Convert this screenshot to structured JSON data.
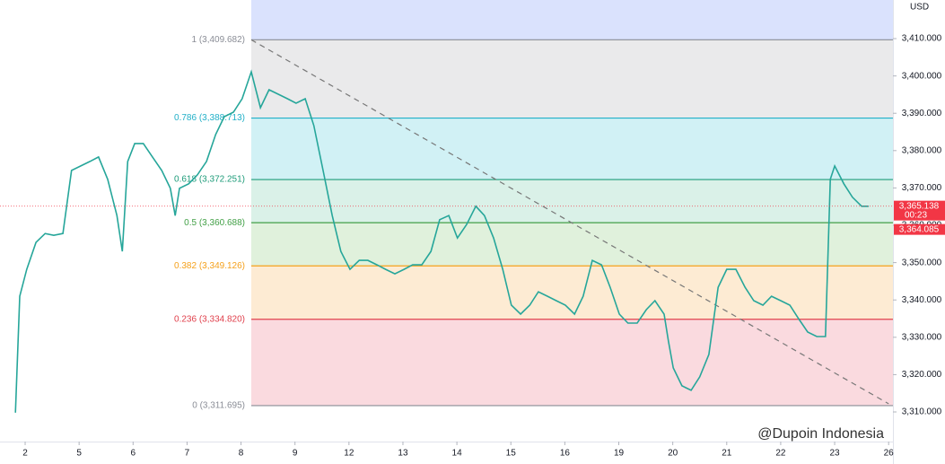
{
  "chart_data": {
    "type": "line",
    "currency": "USD",
    "watermark": "@Dupoin Indonesia",
    "xlim": [
      -0.466,
      16.08
    ],
    "xticks": [
      {
        "value": 0,
        "label": "2"
      },
      {
        "value": 1,
        "label": "5"
      },
      {
        "value": 2,
        "label": "6"
      },
      {
        "value": 3,
        "label": "7"
      },
      {
        "value": 4,
        "label": "8"
      },
      {
        "value": 5,
        "label": "9"
      },
      {
        "value": 6,
        "label": "12"
      },
      {
        "value": 7,
        "label": "13"
      },
      {
        "value": 8,
        "label": "14"
      },
      {
        "value": 9,
        "label": "15"
      },
      {
        "value": 10,
        "label": "16"
      },
      {
        "value": 11,
        "label": "19"
      },
      {
        "value": 12,
        "label": "20"
      },
      {
        "value": 13,
        "label": "21"
      },
      {
        "value": 14,
        "label": "22"
      },
      {
        "value": 15,
        "label": "23"
      },
      {
        "value": 16,
        "label": "26"
      }
    ],
    "ylim": [
      3302.07,
      3420.34
    ],
    "yticks": [
      {
        "value": 3310,
        "label": "3,310.000"
      },
      {
        "value": 3320,
        "label": "3,320.000"
      },
      {
        "value": 3330,
        "label": "3,330.000"
      },
      {
        "value": 3340,
        "label": "3,340.000"
      },
      {
        "value": 3350,
        "label": "3,350.000"
      },
      {
        "value": 3360,
        "label": "3,360.000"
      },
      {
        "value": 3370,
        "label": "3,370.000"
      },
      {
        "value": 3380,
        "label": "3,380.000"
      },
      {
        "value": 3390,
        "label": "3,390.000"
      },
      {
        "value": 3400,
        "label": "3,400.000"
      },
      {
        "value": 3410,
        "label": "3,410.000"
      }
    ],
    "x": [
      -0.18,
      -0.1,
      0.03,
      0.2,
      0.37,
      0.53,
      0.7,
      0.86,
      1.03,
      1.2,
      1.36,
      1.53,
      1.7,
      1.8,
      1.9,
      2.03,
      2.19,
      2.36,
      2.53,
      2.69,
      2.78,
      2.86,
      3.03,
      3.19,
      3.36,
      3.53,
      3.69,
      3.86,
      4.02,
      4.19,
      4.36,
      4.52,
      4.69,
      4.86,
      5.02,
      5.19,
      5.35,
      5.52,
      5.69,
      5.85,
      6.02,
      6.19,
      6.35,
      6.52,
      6.68,
      6.85,
      7.02,
      7.18,
      7.35,
      7.52,
      7.68,
      7.85,
      8.01,
      8.18,
      8.35,
      8.51,
      8.68,
      8.85,
      9.01,
      9.18,
      9.35,
      9.51,
      9.68,
      9.84,
      10.01,
      10.18,
      10.34,
      10.51,
      10.68,
      10.84,
      11.01,
      11.17,
      11.34,
      11.51,
      11.67,
      11.84,
      11.92,
      12.01,
      12.17,
      12.34,
      12.5,
      12.67,
      12.84,
      13.0,
      13.17,
      13.34,
      13.5,
      13.67,
      13.83,
      14.0,
      14.17,
      14.33,
      14.5,
      14.67,
      14.83,
      14.92,
      15.0,
      15.17,
      15.33,
      15.5,
      15.63
    ],
    "series": [
      {
        "color": "#26a69a",
        "values": [
          3309.8,
          3341.0,
          3348.2,
          3355.4,
          3357.8,
          3357.3,
          3357.8,
          3374.7,
          3375.9,
          3377.1,
          3378.3,
          3372.3,
          3362.6,
          3353.0,
          3377.1,
          3381.9,
          3381.9,
          3378.3,
          3374.7,
          3369.9,
          3362.6,
          3369.9,
          3371.1,
          3373.5,
          3377.1,
          3384.3,
          3389.1,
          3390.3,
          3393.9,
          3401.1,
          3391.5,
          3396.3,
          3395.1,
          3393.9,
          3392.7,
          3393.9,
          3386.7,
          3374.7,
          3362.6,
          3353.0,
          3348.2,
          3350.6,
          3350.6,
          3349.4,
          3348.2,
          3347.0,
          3348.2,
          3349.4,
          3349.4,
          3353.0,
          3361.5,
          3362.6,
          3356.6,
          3360.2,
          3365.1,
          3362.6,
          3356.6,
          3348.2,
          3338.6,
          3336.2,
          3338.6,
          3342.2,
          3341.0,
          3339.8,
          3338.6,
          3336.2,
          3341.0,
          3350.6,
          3349.4,
          3343.4,
          3336.2,
          3333.8,
          3333.8,
          3337.4,
          3339.8,
          3336.2,
          3329.0,
          3321.8,
          3317.0,
          3315.8,
          3319.4,
          3325.4,
          3343.4,
          3348.2,
          3348.2,
          3343.4,
          3339.8,
          3338.6,
          3341.0,
          3339.8,
          3338.6,
          3335.0,
          3331.4,
          3330.2,
          3330.2,
          3372.3,
          3375.9,
          3371.1,
          3367.5,
          3365.1,
          3365.1
        ]
      }
    ],
    "fib_start_x": 4.19,
    "fib_levels": [
      {
        "value": 3409.682,
        "label": "1 (3,409.682)",
        "color": "#8a8d96"
      },
      {
        "value": 3388.713,
        "label": "0.786 (3,388.713)",
        "color": "#22b0c8"
      },
      {
        "value": 3372.251,
        "label": "0.618 (3,372.251)",
        "color": "#1f9c7a"
      },
      {
        "value": 3360.688,
        "label": "0.5 (3,360.688)",
        "color": "#43a047"
      },
      {
        "value": 3349.126,
        "label": "0.382 (3,349.126)",
        "color": "#f5a11c"
      },
      {
        "value": 3334.82,
        "label": "0.236 (3,334.820)",
        "color": "#e0404c"
      },
      {
        "value": 3311.695,
        "label": "0 (3,311.695)",
        "color": "#8a8d96"
      }
    ],
    "band_colors": [
      "#d3ddfd",
      "#e6e6e8",
      "#c9eff3",
      "#d4efe4",
      "#daefd6",
      "#fde8cb",
      "#f9d4d9"
    ],
    "trendline": {
      "x": [
        4.19,
        16.0
      ],
      "y": [
        3409.68,
        3312.2
      ],
      "color": "#777777"
    },
    "price_tags": [
      {
        "value": 3365.138,
        "label": "3,365.138",
        "sublabel": "00:23",
        "color": "#f23645"
      },
      {
        "value": 3364.085,
        "label": "3,364.085",
        "color": "#f23645"
      }
    ]
  }
}
